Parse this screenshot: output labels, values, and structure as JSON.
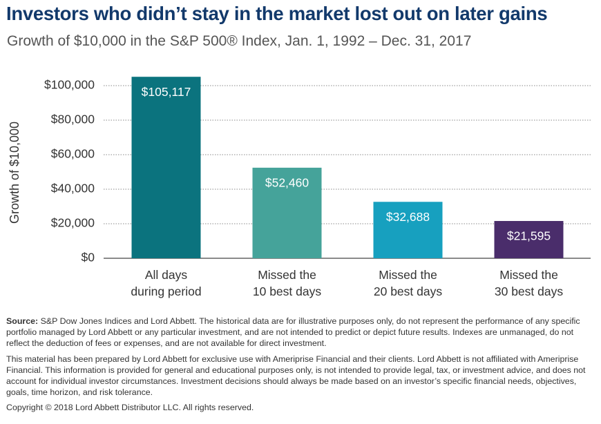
{
  "chart_data": {
    "type": "bar",
    "title": "Investors who didn’t stay in the market lost out on later gains",
    "subtitle": "Growth of $10,000 in the S&P 500® Index, Jan. 1, 1992 – Dec. 31, 2017",
    "y_label": "Growth of $10,000",
    "categories": [
      "All days\nduring period",
      "Missed the\n10 best days",
      "Missed the\n20 best days",
      "Missed the\n30 best days"
    ],
    "values": [
      105117,
      52460,
      32688,
      21595
    ],
    "value_labels": [
      "$105,117",
      "$52,460",
      "$32,688",
      "$21,595"
    ],
    "colors": [
      "#0b737e",
      "#45a39a",
      "#17a0bf",
      "#4a2d6b"
    ],
    "ylim": [
      0,
      112000
    ],
    "yticks": [
      {
        "value": 0,
        "label": "$0"
      },
      {
        "value": 20000,
        "label": "$20,000"
      },
      {
        "value": 40000,
        "label": "$40,000"
      },
      {
        "value": 60000,
        "label": "$60,000"
      },
      {
        "value": 80000,
        "label": "$80,000"
      },
      {
        "value": 100000,
        "label": "$100,000"
      }
    ],
    "grid": true
  },
  "notes": {
    "source_label": "Source:",
    "source_text": " S&P Dow Jones Indices and Lord Abbett. The historical data are for illustrative purposes only, do not represent the performance of any specific portfolio managed by Lord Abbett or any particular investment, and are not intended to predict or depict future results. Indexes are unmanaged, do not reflect the deduction of fees or expenses, and are not available for direct investment.",
    "disclaimer": "This material has been prepared by Lord Abbett for exclusive use with Ameriprise Financial and their clients. Lord Abbett is not affiliated with Ameriprise Financial. This information is provided for general and educational purposes only, is not intended to provide legal, tax, or investment advice, and does not account for individual investor circumstances. Investment decisions should always be made based on an investor’s specific financial needs, objectives, goals, time horizon, and risk tolerance.",
    "copyright": "Copyright © 2018 Lord Abbett Distributor LLC. All rights reserved."
  }
}
